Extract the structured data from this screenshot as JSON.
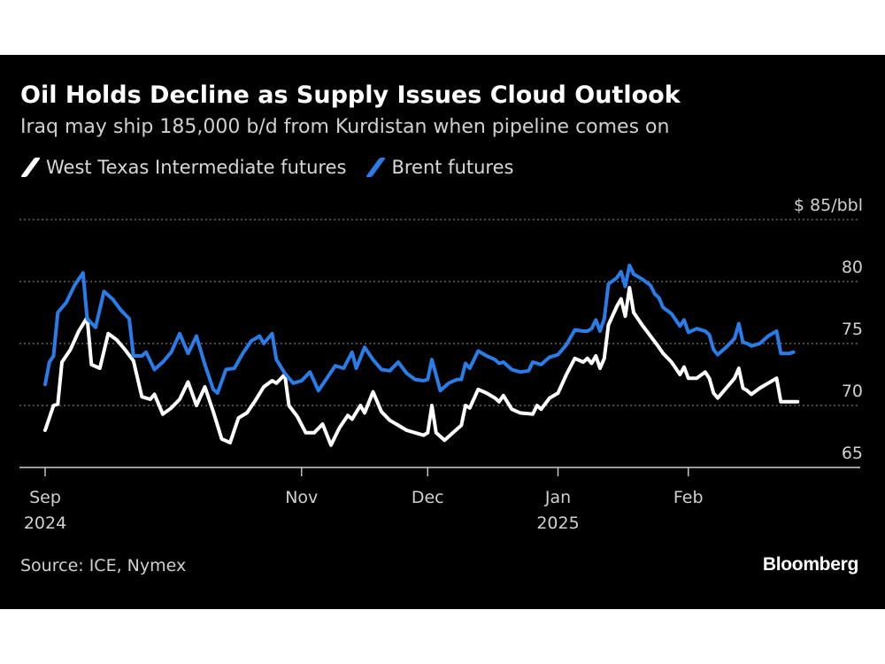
{
  "colors": {
    "background": "#000000",
    "wti": "#ffffff",
    "brent": "#2a7de9",
    "grid": "#777777"
  },
  "footer": {
    "source": "Source: ICE, Nymex",
    "brand": "Bloomberg"
  },
  "chart_data": {
    "type": "line",
    "title": "Oil Holds Decline as Supply Issues Cloud Outlook",
    "subtitle": "Iraq may ship 185,000 b/d from Kurdistan when pipeline comes on",
    "ylim": [
      65,
      85
    ],
    "yunit_label": "$ 85/bbl",
    "yticks": [
      {
        "value": 85,
        "label": "$ 85/bbl"
      },
      {
        "value": 80,
        "label": "80"
      },
      {
        "value": 75,
        "label": "75"
      },
      {
        "value": 70,
        "label": "70"
      },
      {
        "value": 65,
        "label": "65"
      }
    ],
    "grid": true,
    "legend_position": "top-left",
    "xlim": [
      "2024-09-01",
      "2025-02-28"
    ],
    "xticks": [
      {
        "date": "2024-09-01",
        "label": "Sep",
        "sublabel": "2024"
      },
      {
        "date": "2024-11-01",
        "label": "Nov",
        "sublabel": ""
      },
      {
        "date": "2024-12-01",
        "label": "Dec",
        "sublabel": ""
      },
      {
        "date": "2025-01-01",
        "label": "Jan",
        "sublabel": "2025"
      },
      {
        "date": "2025-02-01",
        "label": "Feb",
        "sublabel": ""
      }
    ],
    "series": [
      {
        "name": "West Texas Intermediate futures",
        "color": "#ffffff",
        "points": [
          [
            "2024-09-01",
            68.0
          ],
          [
            "2024-09-03",
            70.0
          ],
          [
            "2024-09-04",
            70.1
          ],
          [
            "2024-09-05",
            73.5
          ],
          [
            "2024-09-07",
            74.5
          ],
          [
            "2024-09-09",
            76.0
          ],
          [
            "2024-09-11",
            77.1
          ],
          [
            "2024-09-12",
            73.3
          ],
          [
            "2024-09-14",
            73.0
          ],
          [
            "2024-09-16",
            75.8
          ],
          [
            "2024-09-18",
            75.3
          ],
          [
            "2024-09-20",
            74.5
          ],
          [
            "2024-09-22",
            73.6
          ],
          [
            "2024-09-24",
            70.7
          ],
          [
            "2024-09-26",
            70.5
          ],
          [
            "2024-09-27",
            70.9
          ],
          [
            "2024-09-29",
            69.3
          ],
          [
            "2024-10-01",
            69.8
          ],
          [
            "2024-10-03",
            70.5
          ],
          [
            "2024-10-05",
            71.9
          ],
          [
            "2024-10-07",
            70.0
          ],
          [
            "2024-10-09",
            71.5
          ],
          [
            "2024-10-11",
            69.5
          ],
          [
            "2024-10-13",
            67.3
          ],
          [
            "2024-10-15",
            67.0
          ],
          [
            "2024-10-17",
            69.0
          ],
          [
            "2024-10-19",
            69.4
          ],
          [
            "2024-10-21",
            70.4
          ],
          [
            "2024-10-23",
            71.5
          ],
          [
            "2024-10-25",
            72.0
          ],
          [
            "2024-10-26",
            71.8
          ],
          [
            "2024-10-28",
            72.5
          ],
          [
            "2024-10-29",
            70.0
          ],
          [
            "2024-10-31",
            69.1
          ],
          [
            "2024-11-02",
            67.8
          ],
          [
            "2024-11-04",
            67.8
          ],
          [
            "2024-11-06",
            68.5
          ],
          [
            "2024-11-08",
            66.8
          ],
          [
            "2024-11-10",
            68.2
          ],
          [
            "2024-11-12",
            69.2
          ],
          [
            "2024-11-13",
            68.9
          ],
          [
            "2024-11-15",
            70.0
          ],
          [
            "2024-11-16",
            69.4
          ],
          [
            "2024-11-18",
            71.1
          ],
          [
            "2024-11-20",
            69.5
          ],
          [
            "2024-11-22",
            68.8
          ],
          [
            "2024-11-24",
            68.4
          ],
          [
            "2024-11-26",
            68.0
          ],
          [
            "2024-11-28",
            67.8
          ],
          [
            "2024-11-30",
            67.6
          ],
          [
            "2024-12-01",
            67.8
          ],
          [
            "2024-12-02",
            70.0
          ],
          [
            "2024-12-03",
            67.8
          ],
          [
            "2024-12-05",
            67.2
          ],
          [
            "2024-12-07",
            67.8
          ],
          [
            "2024-12-09",
            68.4
          ],
          [
            "2024-12-10",
            70.0
          ],
          [
            "2024-12-11",
            69.8
          ],
          [
            "2024-12-13",
            71.3
          ],
          [
            "2024-12-15",
            71.0
          ],
          [
            "2024-12-17",
            70.6
          ],
          [
            "2024-12-18",
            70.3
          ],
          [
            "2024-12-19",
            70.8
          ],
          [
            "2024-12-21",
            69.7
          ],
          [
            "2024-12-23",
            69.4
          ],
          [
            "2024-12-26",
            69.3
          ],
          [
            "2024-12-27",
            70.0
          ],
          [
            "2024-12-28",
            69.7
          ],
          [
            "2024-12-30",
            70.6
          ],
          [
            "2025-01-01",
            71.0
          ],
          [
            "2025-01-03",
            72.5
          ],
          [
            "2025-01-05",
            73.8
          ],
          [
            "2025-01-07",
            73.5
          ],
          [
            "2025-01-08",
            73.8
          ],
          [
            "2025-01-09",
            73.4
          ],
          [
            "2025-01-10",
            74.0
          ],
          [
            "2025-01-11",
            73.0
          ],
          [
            "2025-01-12",
            73.8
          ],
          [
            "2025-01-13",
            76.5
          ],
          [
            "2025-01-15",
            78.0
          ],
          [
            "2025-01-16",
            78.6
          ],
          [
            "2025-01-17",
            77.2
          ],
          [
            "2025-01-18",
            79.5
          ],
          [
            "2025-01-19",
            77.5
          ],
          [
            "2025-01-21",
            76.5
          ],
          [
            "2025-01-23",
            75.6
          ],
          [
            "2025-01-25",
            74.7
          ],
          [
            "2025-01-26",
            74.2
          ],
          [
            "2025-01-28",
            73.5
          ],
          [
            "2025-01-30",
            72.5
          ],
          [
            "2025-01-31",
            73.1
          ],
          [
            "2025-02-01",
            72.2
          ],
          [
            "2025-02-03",
            72.2
          ],
          [
            "2025-02-05",
            72.7
          ],
          [
            "2025-02-06",
            72.2
          ],
          [
            "2025-02-07",
            71.0
          ],
          [
            "2025-02-08",
            70.6
          ],
          [
            "2025-02-10",
            71.4
          ],
          [
            "2025-02-12",
            72.2
          ],
          [
            "2025-02-13",
            73.0
          ],
          [
            "2025-02-14",
            71.4
          ],
          [
            "2025-02-15",
            71.2
          ],
          [
            "2025-02-16",
            70.9
          ],
          [
            "2025-02-18",
            71.4
          ],
          [
            "2025-02-20",
            71.8
          ],
          [
            "2025-02-22",
            72.2
          ],
          [
            "2025-02-23",
            70.3
          ],
          [
            "2025-02-25",
            70.3
          ],
          [
            "2025-02-27",
            70.3
          ]
        ]
      },
      {
        "name": "Brent futures",
        "color": "#2a7de9",
        "points": [
          [
            "2024-09-01",
            71.7
          ],
          [
            "2024-09-02",
            73.5
          ],
          [
            "2024-09-03",
            74.0
          ],
          [
            "2024-09-04",
            77.5
          ],
          [
            "2024-09-06",
            78.3
          ],
          [
            "2024-09-08",
            79.7
          ],
          [
            "2024-09-10",
            80.7
          ],
          [
            "2024-09-11",
            77.0
          ],
          [
            "2024-09-13",
            76.3
          ],
          [
            "2024-09-15",
            79.2
          ],
          [
            "2024-09-17",
            78.6
          ],
          [
            "2024-09-19",
            77.7
          ],
          [
            "2024-09-21",
            77.0
          ],
          [
            "2024-09-22",
            74.0
          ],
          [
            "2024-09-24",
            74.0
          ],
          [
            "2024-09-25",
            74.3
          ],
          [
            "2024-09-27",
            72.9
          ],
          [
            "2024-09-29",
            73.5
          ],
          [
            "2024-10-01",
            74.3
          ],
          [
            "2024-10-03",
            75.8
          ],
          [
            "2024-10-05",
            74.2
          ],
          [
            "2024-10-07",
            75.6
          ],
          [
            "2024-10-09",
            73.3
          ],
          [
            "2024-10-11",
            71.3
          ],
          [
            "2024-10-12",
            71.0
          ],
          [
            "2024-10-14",
            72.9
          ],
          [
            "2024-10-16",
            73.0
          ],
          [
            "2024-10-18",
            74.2
          ],
          [
            "2024-10-20",
            75.2
          ],
          [
            "2024-10-22",
            75.6
          ],
          [
            "2024-10-23",
            75.0
          ],
          [
            "2024-10-25",
            75.8
          ],
          [
            "2024-10-26",
            73.7
          ],
          [
            "2024-10-28",
            72.6
          ],
          [
            "2024-10-30",
            71.8
          ],
          [
            "2024-11-01",
            72.0
          ],
          [
            "2024-11-03",
            72.7
          ],
          [
            "2024-11-05",
            71.2
          ],
          [
            "2024-11-07",
            72.2
          ],
          [
            "2024-11-09",
            73.2
          ],
          [
            "2024-11-11",
            73.0
          ],
          [
            "2024-11-13",
            74.3
          ],
          [
            "2024-11-14",
            73.0
          ],
          [
            "2024-11-16",
            74.7
          ],
          [
            "2024-11-18",
            73.7
          ],
          [
            "2024-11-20",
            72.9
          ],
          [
            "2024-11-22",
            72.8
          ],
          [
            "2024-11-24",
            73.5
          ],
          [
            "2024-11-26",
            72.6
          ],
          [
            "2024-11-28",
            72.1
          ],
          [
            "2024-11-30",
            72.0
          ],
          [
            "2024-12-01",
            72.1
          ],
          [
            "2024-12-02",
            73.7
          ],
          [
            "2024-12-04",
            71.2
          ],
          [
            "2024-12-06",
            71.8
          ],
          [
            "2024-12-08",
            72.1
          ],
          [
            "2024-12-09",
            72.1
          ],
          [
            "2024-12-10",
            73.4
          ],
          [
            "2024-12-11",
            73.0
          ],
          [
            "2024-12-13",
            74.4
          ],
          [
            "2024-12-15",
            74.0
          ],
          [
            "2024-12-17",
            73.7
          ],
          [
            "2024-12-18",
            73.4
          ],
          [
            "2024-12-19",
            73.5
          ],
          [
            "2024-12-21",
            72.9
          ],
          [
            "2024-12-23",
            72.7
          ],
          [
            "2024-12-25",
            72.8
          ],
          [
            "2024-12-26",
            73.5
          ],
          [
            "2024-12-28",
            73.3
          ],
          [
            "2024-12-30",
            73.9
          ],
          [
            "2025-01-01",
            74.1
          ],
          [
            "2025-01-03",
            74.9
          ],
          [
            "2025-01-05",
            76.1
          ],
          [
            "2025-01-07",
            76.0
          ],
          [
            "2025-01-08",
            76.0
          ],
          [
            "2025-01-09",
            76.2
          ],
          [
            "2025-01-10",
            76.9
          ],
          [
            "2025-01-11",
            76.0
          ],
          [
            "2025-01-12",
            77.0
          ],
          [
            "2025-01-13",
            79.8
          ],
          [
            "2025-01-15",
            80.3
          ],
          [
            "2025-01-16",
            80.8
          ],
          [
            "2025-01-17",
            79.6
          ],
          [
            "2025-01-18",
            81.3
          ],
          [
            "2025-01-19",
            80.6
          ],
          [
            "2025-01-21",
            80.2
          ],
          [
            "2025-01-23",
            79.7
          ],
          [
            "2025-01-24",
            79.0
          ],
          [
            "2025-01-25",
            78.7
          ],
          [
            "2025-01-26",
            77.9
          ],
          [
            "2025-01-28",
            77.4
          ],
          [
            "2025-01-30",
            76.4
          ],
          [
            "2025-01-31",
            76.9
          ],
          [
            "2025-02-01",
            75.9
          ],
          [
            "2025-02-03",
            76.2
          ],
          [
            "2025-02-05",
            76.0
          ],
          [
            "2025-02-06",
            75.7
          ],
          [
            "2025-02-07",
            74.5
          ],
          [
            "2025-02-08",
            74.1
          ],
          [
            "2025-02-10",
            74.7
          ],
          [
            "2025-02-12",
            75.4
          ],
          [
            "2025-02-13",
            76.6
          ],
          [
            "2025-02-14",
            75.1
          ],
          [
            "2025-02-15",
            75.0
          ],
          [
            "2025-02-16",
            74.8
          ],
          [
            "2025-02-18",
            75.0
          ],
          [
            "2025-02-20",
            75.6
          ],
          [
            "2025-02-22",
            76.0
          ],
          [
            "2025-02-23",
            74.2
          ],
          [
            "2025-02-25",
            74.2
          ],
          [
            "2025-02-26",
            74.3
          ]
        ]
      }
    ]
  }
}
